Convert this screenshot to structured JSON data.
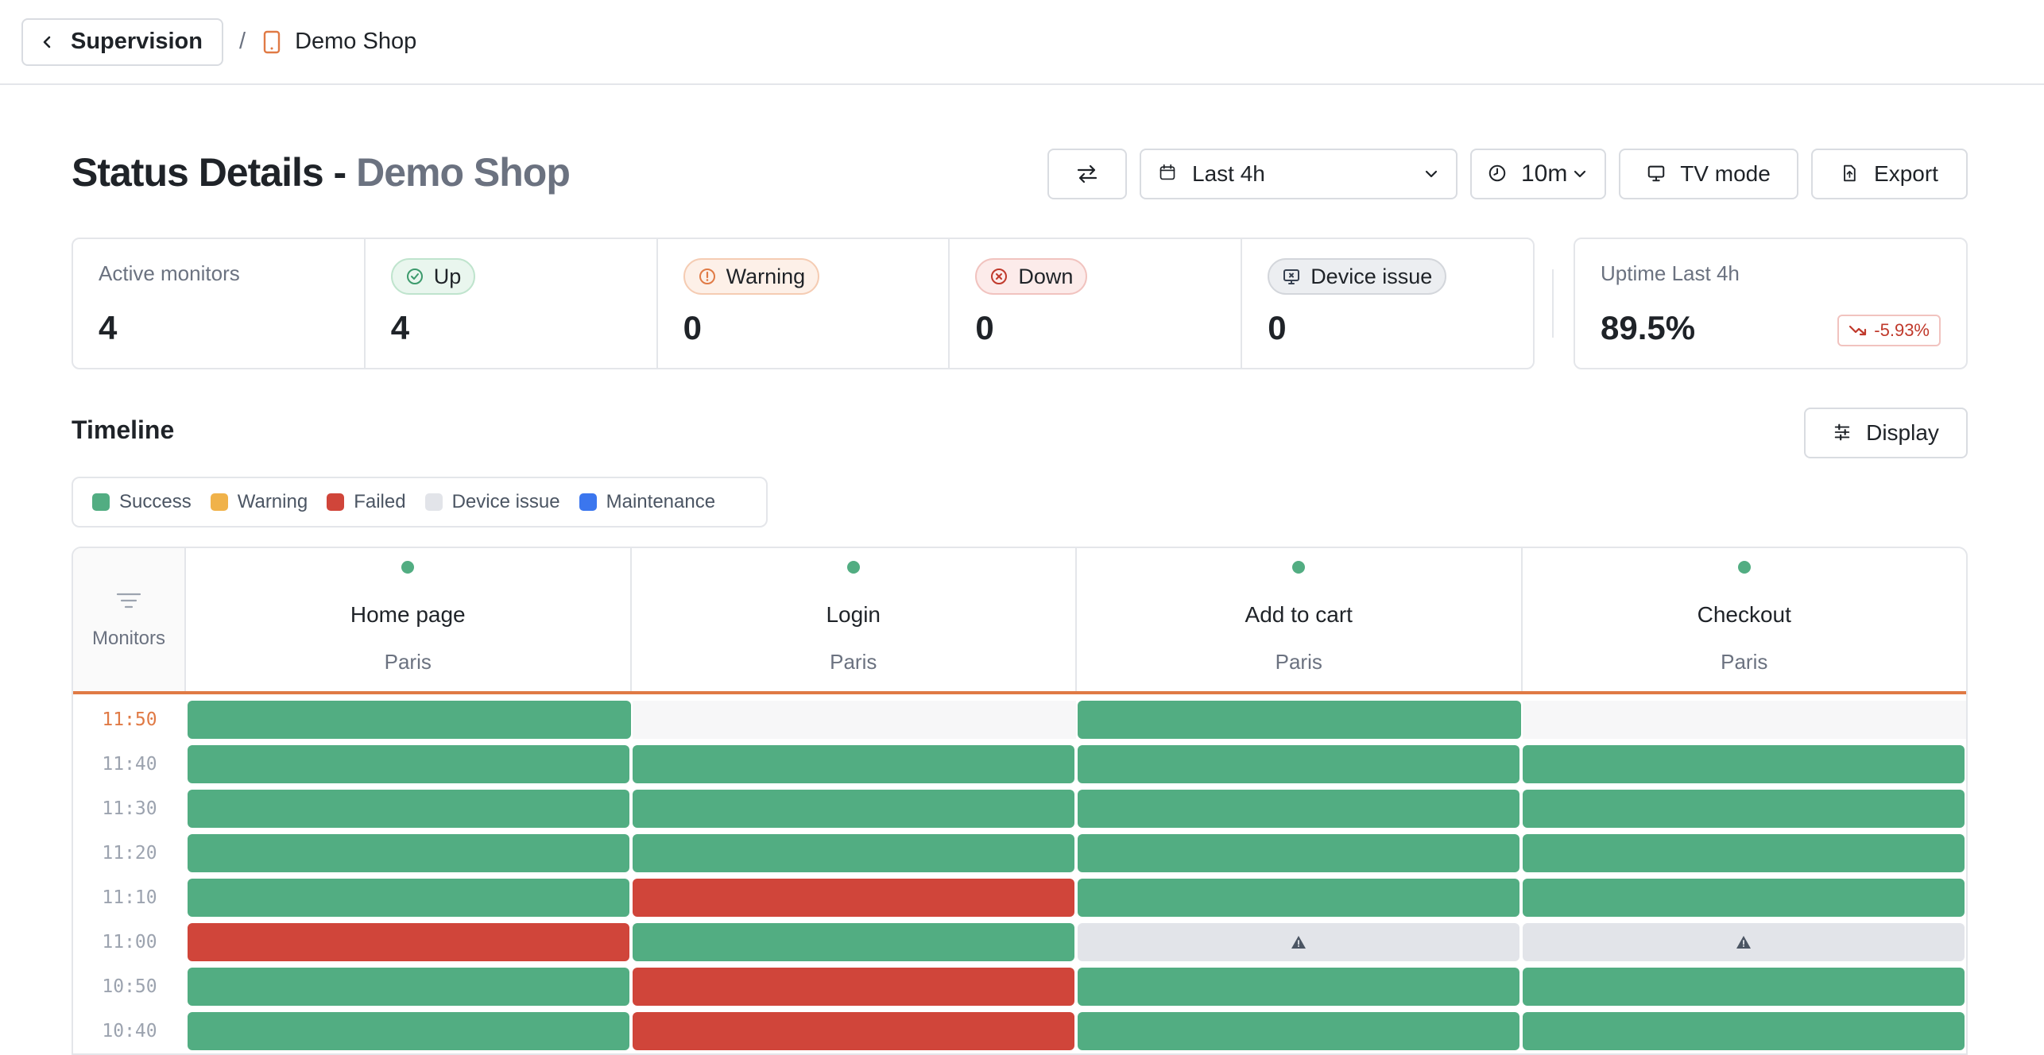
{
  "breadcrumb": {
    "back_label": "Supervision",
    "separator": "/",
    "current": "Demo Shop"
  },
  "header": {
    "title_prefix": "Status Details - ",
    "title_accent": "Demo Shop"
  },
  "toolbar": {
    "range_label": "Last 4h",
    "interval_label": "10m",
    "tv_label": "TV mode",
    "export_label": "Export"
  },
  "stats": {
    "active": {
      "label": "Active monitors",
      "value": "4"
    },
    "up": {
      "label": "Up",
      "value": "4"
    },
    "warning": {
      "label": "Warning",
      "value": "0"
    },
    "down": {
      "label": "Down",
      "value": "0"
    },
    "device": {
      "label": "Device issue",
      "value": "0"
    }
  },
  "uptime": {
    "label": "Uptime Last 4h",
    "value": "89.5%",
    "delta": "-5.93%"
  },
  "timeline": {
    "title": "Timeline",
    "display_label": "Display",
    "monitors_label": "Monitors",
    "legend": [
      {
        "label": "Success",
        "color": "#52ad82"
      },
      {
        "label": "Warning",
        "color": "#f0b24a"
      },
      {
        "label": "Failed",
        "color": "#d0453a"
      },
      {
        "label": "Device issue",
        "color": "#e2e4e9"
      },
      {
        "label": "Maintenance",
        "color": "#3b76ee"
      }
    ],
    "columns": [
      {
        "name": "Home page",
        "location": "Paris"
      },
      {
        "name": "Login",
        "location": "Paris"
      },
      {
        "name": "Add to cart",
        "location": "Paris"
      },
      {
        "name": "Checkout",
        "location": "Paris"
      }
    ],
    "rows": [
      {
        "time": "11:50",
        "cells": [
          "success",
          "empty",
          "success",
          "empty"
        ]
      },
      {
        "time": "11:40",
        "cells": [
          "success",
          "success",
          "success",
          "success"
        ]
      },
      {
        "time": "11:30",
        "cells": [
          "success",
          "success",
          "success",
          "success"
        ]
      },
      {
        "time": "11:20",
        "cells": [
          "success",
          "success",
          "success",
          "success"
        ]
      },
      {
        "time": "11:10",
        "cells": [
          "success",
          "failed",
          "success",
          "success"
        ]
      },
      {
        "time": "11:00",
        "cells": [
          "failed",
          "success",
          "device",
          "device"
        ]
      },
      {
        "time": "10:50",
        "cells": [
          "success",
          "failed",
          "success",
          "success"
        ]
      },
      {
        "time": "10:40",
        "cells": [
          "success",
          "failed",
          "success",
          "success"
        ]
      }
    ]
  }
}
